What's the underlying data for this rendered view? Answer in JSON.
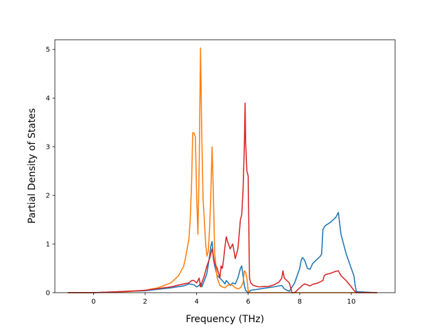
{
  "chart_data": {
    "type": "line",
    "xlabel": "Frequency (THz)",
    "ylabel": "Partial Density of States",
    "xlim": [
      -1.5,
      11.7
    ],
    "ylim": [
      0,
      5.2
    ],
    "xticks": [
      0,
      2,
      4,
      6,
      8,
      10
    ],
    "yticks": [
      0,
      1,
      2,
      3,
      4,
      5
    ],
    "xtick_labels": [
      "0",
      "2",
      "4",
      "6",
      "8",
      "10"
    ],
    "ytick_labels": [
      "0",
      "1",
      "2",
      "3",
      "4",
      "5"
    ],
    "grid": false,
    "series": [
      {
        "color": "#1f77b4",
        "x": [
          -1.0,
          0.0,
          1.0,
          2.0,
          3.0,
          3.5,
          3.7,
          3.9,
          4.0,
          4.1,
          4.15,
          4.2,
          4.3,
          4.4,
          4.5,
          4.55,
          4.6,
          4.65,
          4.7,
          4.8,
          4.9,
          5.0,
          5.1,
          5.15,
          5.2,
          5.3,
          5.4,
          5.5,
          5.6,
          5.7,
          5.75,
          5.8,
          5.85,
          5.9,
          6.0,
          6.1,
          6.5,
          7.0,
          7.3,
          7.4,
          7.5,
          7.6,
          7.8,
          7.9,
          8.0,
          8.05,
          8.1,
          8.15,
          8.2,
          8.3,
          8.4,
          8.5,
          8.6,
          8.8,
          8.85,
          8.9,
          8.95,
          9.0,
          9.2,
          9.4,
          9.45,
          9.5,
          9.6,
          9.8,
          10.0,
          10.1,
          10.15,
          10.2,
          11.0
        ],
        "y": [
          0.0,
          0.0,
          0.02,
          0.04,
          0.1,
          0.14,
          0.18,
          0.16,
          0.12,
          0.15,
          0.2,
          0.12,
          0.25,
          0.4,
          0.75,
          0.95,
          1.05,
          0.7,
          0.55,
          0.35,
          0.3,
          0.25,
          0.18,
          0.25,
          0.22,
          0.15,
          0.2,
          0.18,
          0.3,
          0.5,
          0.55,
          0.35,
          0.15,
          0.05,
          0.0,
          0.05,
          0.08,
          0.12,
          0.15,
          0.08,
          0.05,
          0.03,
          0.2,
          0.35,
          0.5,
          0.65,
          0.72,
          0.7,
          0.65,
          0.5,
          0.48,
          0.6,
          0.65,
          0.75,
          0.8,
          1.3,
          1.35,
          1.38,
          1.45,
          1.55,
          1.6,
          1.65,
          1.2,
          0.8,
          0.5,
          0.35,
          0.15,
          0.02,
          0.0
        ]
      },
      {
        "color": "#ff7f0e",
        "x": [
          -1.0,
          0.0,
          1.0,
          2.0,
          2.5,
          3.0,
          3.3,
          3.5,
          3.6,
          3.7,
          3.75,
          3.8,
          3.85,
          3.9,
          3.95,
          4.0,
          4.05,
          4.1,
          4.15,
          4.2,
          4.25,
          4.3,
          4.35,
          4.4,
          4.45,
          4.5,
          4.55,
          4.6,
          4.65,
          4.7,
          4.8,
          4.9,
          5.0,
          5.1,
          5.2,
          5.3,
          5.4,
          5.5,
          5.6,
          5.7,
          5.8,
          5.85,
          5.9,
          5.95,
          6.0,
          6.05,
          6.1,
          6.3,
          7.0,
          8.0,
          9.0,
          10.0,
          10.5,
          11.0
        ],
        "y": [
          0.0,
          0.0,
          0.01,
          0.05,
          0.1,
          0.2,
          0.35,
          0.55,
          0.8,
          1.1,
          1.5,
          2.2,
          3.29,
          3.28,
          3.2,
          2.0,
          1.2,
          2.6,
          5.03,
          3.2,
          1.9,
          1.5,
          1.0,
          0.75,
          0.85,
          1.3,
          2.0,
          3.0,
          2.0,
          0.8,
          0.3,
          0.15,
          0.12,
          0.1,
          0.15,
          0.17,
          0.15,
          0.1,
          0.08,
          0.1,
          0.2,
          0.45,
          0.42,
          0.3,
          0.05,
          0.0,
          0.0,
          0.0,
          0.0,
          0.0,
          0.0,
          0.0,
          0.0,
          0.0
        ]
      },
      {
        "color": "#d62728",
        "x": [
          -1.0,
          0.0,
          1.0,
          2.0,
          3.0,
          3.5,
          3.7,
          3.8,
          3.9,
          4.0,
          4.1,
          4.15,
          4.2,
          4.3,
          4.4,
          4.5,
          4.6,
          4.7,
          4.8,
          4.9,
          4.95,
          5.0,
          5.05,
          5.1,
          5.15,
          5.2,
          5.3,
          5.35,
          5.4,
          5.5,
          5.6,
          5.65,
          5.7,
          5.75,
          5.8,
          5.85,
          5.88,
          5.9,
          5.95,
          6.0,
          6.05,
          6.1,
          6.2,
          6.4,
          6.8,
          7.0,
          7.2,
          7.3,
          7.35,
          7.4,
          7.5,
          7.6,
          7.7,
          7.8,
          8.0,
          8.1,
          8.2,
          8.4,
          8.5,
          8.7,
          8.9,
          8.95,
          9.0,
          9.2,
          9.4,
          9.5,
          9.6,
          9.8,
          10.0,
          10.1,
          10.2,
          11.0
        ],
        "y": [
          0.0,
          0.0,
          0.02,
          0.05,
          0.12,
          0.18,
          0.2,
          0.25,
          0.25,
          0.2,
          0.3,
          0.12,
          0.2,
          0.35,
          0.55,
          0.7,
          0.9,
          0.6,
          0.5,
          0.3,
          0.55,
          0.5,
          0.7,
          0.95,
          1.15,
          1.05,
          0.9,
          0.95,
          1.0,
          0.7,
          0.9,
          1.2,
          1.5,
          1.6,
          2.1,
          3.0,
          3.9,
          3.1,
          2.5,
          2.4,
          0.3,
          0.2,
          0.15,
          0.12,
          0.13,
          0.16,
          0.22,
          0.3,
          0.45,
          0.3,
          0.25,
          0.2,
          0.0,
          0.0,
          0.1,
          0.15,
          0.18,
          0.14,
          0.17,
          0.2,
          0.25,
          0.35,
          0.37,
          0.4,
          0.44,
          0.45,
          0.35,
          0.25,
          0.12,
          0.05,
          0.0,
          0.0
        ]
      }
    ]
  }
}
